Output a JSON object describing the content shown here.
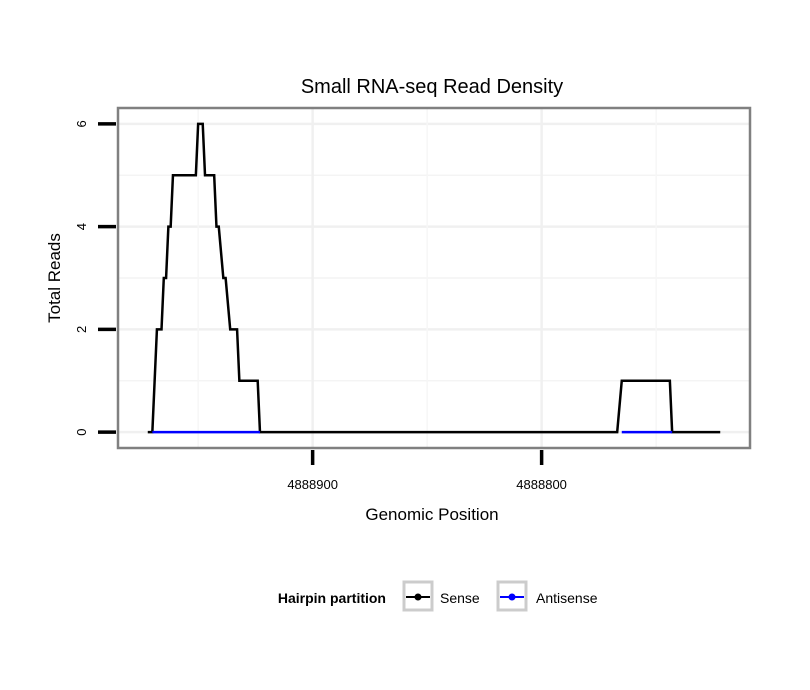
{
  "chart_data": {
    "type": "line",
    "title": "Small RNA-seq Read Density",
    "xlabel": "Genomic Position",
    "ylabel": "Total Reads",
    "xlim": [
      4888985,
      4888709
    ],
    "ylim": [
      -0.31,
      6.31
    ],
    "x_reversed": true,
    "xticks": [
      4888900,
      4888800
    ],
    "xtick_labels": [
      "4888900",
      "4888800"
    ],
    "yticks": [
      0,
      2,
      4,
      6
    ],
    "ytick_labels": [
      "0",
      "2",
      "4",
      "6"
    ],
    "grid": true,
    "legend": {
      "title": "Hairpin partition",
      "position": "bottom",
      "entries": [
        "Sense",
        "Antisense"
      ]
    },
    "series": [
      {
        "name": "Sense",
        "color": "#000000",
        "x": [
          4888972,
          4888970,
          4888968,
          4888966,
          4888965,
          4888964,
          4888963,
          4888962,
          4888961,
          4888951,
          4888950,
          4888948,
          4888947,
          4888943,
          4888942,
          4888941,
          4888939,
          4888938,
          4888936,
          4888933,
          4888932,
          4888924,
          4888923,
          4888767,
          4888765,
          4888744,
          4888743,
          4888722
        ],
        "y": [
          0,
          0,
          2,
          2,
          3,
          3,
          4,
          4,
          5,
          5,
          6,
          6,
          5,
          5,
          4,
          4,
          3,
          3,
          2,
          2,
          1,
          1,
          0,
          0,
          1,
          1,
          0,
          0
        ]
      },
      {
        "name": "Antisense",
        "color": "#0000ff",
        "segments": [
          {
            "x": [
              4888970,
              4888923
            ],
            "y": [
              0,
              0
            ]
          },
          {
            "x": [
              4888765,
              4888743
            ],
            "y": [
              0,
              0
            ]
          }
        ]
      }
    ]
  }
}
